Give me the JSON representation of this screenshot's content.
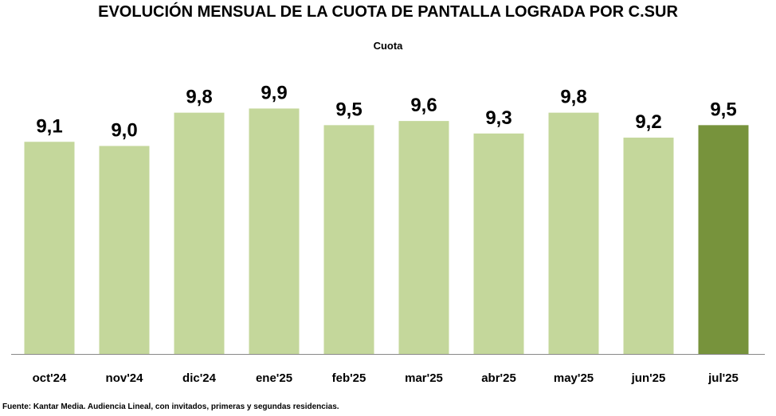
{
  "chart_data": {
    "type": "bar",
    "title": "EVOLUCIÓN MENSUAL DE LA CUOTA DE PANTALLA LOGRADA POR C.SUR",
    "subtitle": "Cuota",
    "categories": [
      "oct'24",
      "nov'24",
      "dic'24",
      "ene'25",
      "feb'25",
      "mar'25",
      "abr'25",
      "may'25",
      "jun'25",
      "jul'25"
    ],
    "values": [
      9.1,
      9.0,
      9.8,
      9.9,
      9.5,
      9.6,
      9.3,
      9.8,
      9.2,
      9.5
    ],
    "value_labels": [
      "9,1",
      "9,0",
      "9,8",
      "9,9",
      "9,5",
      "9,6",
      "9,3",
      "9,8",
      "9,2",
      "9,5"
    ],
    "xlabel": "",
    "ylabel": "",
    "ylim": [
      4,
      10.5
    ],
    "grid": false,
    "colors": {
      "bar": "#c4d79b",
      "highlight": "#77933c",
      "axis": "#888888"
    },
    "highlight_index": 9
  },
  "footer": "Fuente: Kantar Media. Audiencia Lineal, con invitados, primeras y segundas residencias."
}
